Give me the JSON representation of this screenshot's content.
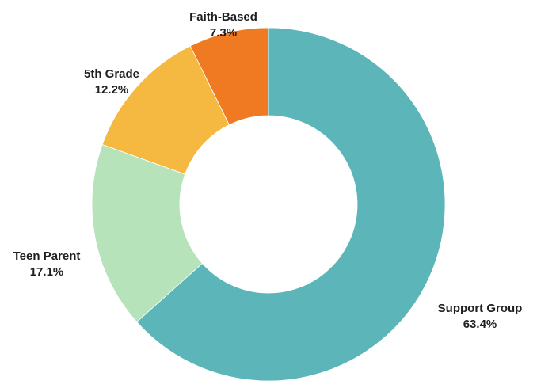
{
  "chart_data": {
    "type": "pie",
    "donut": true,
    "title": "",
    "slices": [
      {
        "label": "Support Group",
        "value": 63.4,
        "pct_label": "63.4%",
        "color": "#5bb5b9"
      },
      {
        "label": "Teen Parent",
        "value": 17.1,
        "pct_label": "17.1%",
        "color": "#b7e3bb"
      },
      {
        "label": "5th Grade",
        "value": 12.2,
        "pct_label": "12.2%",
        "color": "#f5b942"
      },
      {
        "label": "Faith-Based",
        "value": 7.3,
        "pct_label": "7.3%",
        "color": "#f07a22"
      }
    ],
    "legend": "none"
  }
}
